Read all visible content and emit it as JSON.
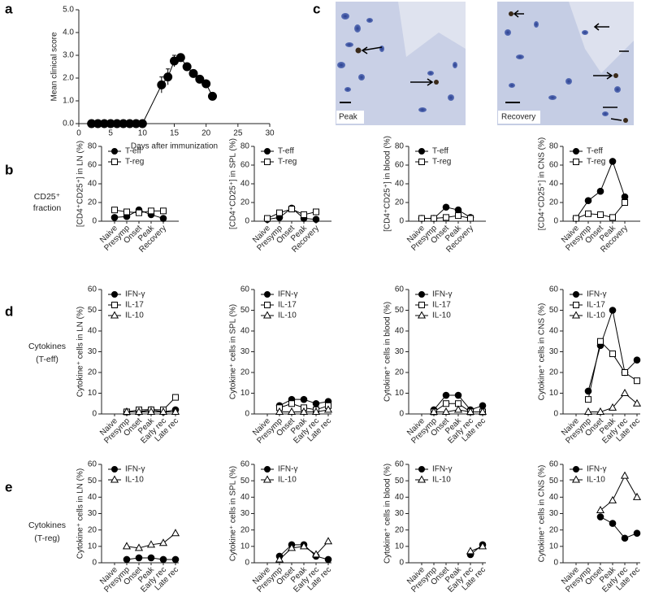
{
  "panel_labels": [
    "a",
    "b",
    "c",
    "d",
    "e"
  ],
  "row_labels": [
    [
      "CD25⁺",
      "fraction"
    ],
    [
      "Cytokines",
      "(T-eff)"
    ],
    [
      "Cytokines",
      "(T-reg)"
    ]
  ],
  "images": [
    {
      "label": "Peak"
    },
    {
      "label": "Recovery"
    }
  ],
  "chart_data": [
    {
      "type": "line",
      "xlabel": "Days after immunization",
      "ylabel": "Mean clinical score",
      "x": [
        2,
        3,
        4,
        5,
        6,
        7,
        8,
        9,
        10,
        13,
        14,
        15,
        16,
        17,
        18,
        19,
        20,
        21
      ],
      "values": [
        0,
        0,
        0,
        0,
        0,
        0,
        0,
        0,
        0,
        1.7,
        2.05,
        2.75,
        2.9,
        2.5,
        2.2,
        1.95,
        1.75,
        1.2
      ],
      "errors": [
        0,
        0,
        0,
        0,
        0,
        0,
        0,
        0,
        0,
        0.35,
        0.35,
        0.25,
        0.15,
        0.1,
        0.1,
        0.1,
        0.1,
        0.12
      ],
      "marker": "circle-filled",
      "color": "#000000",
      "xlim": [
        0,
        30
      ],
      "xticks": [
        0,
        5,
        10,
        15,
        20,
        25,
        30
      ],
      "ylim": [
        0,
        5
      ],
      "yticks": [
        {
          "value": 0,
          "label": "0.0"
        },
        {
          "value": 1,
          "label": "1.0"
        },
        {
          "value": 2,
          "label": "2.0"
        },
        {
          "value": 3,
          "label": "3.0"
        },
        {
          "value": 4,
          "label": "4.0"
        },
        {
          "value": 5,
          "label": "5.0"
        }
      ]
    },
    {
      "type": "line",
      "ylabel": "[CD4⁺CD25⁺] in LN (%)",
      "categories": [
        "Naive",
        "Presymp",
        "Onset",
        "Peak",
        "Recovery"
      ],
      "ylim": [
        0,
        80
      ],
      "yticks": [
        0,
        20,
        40,
        60,
        80
      ],
      "series": [
        {
          "name": "T-eff",
          "marker": "circle-filled",
          "color": "#000000",
          "values": [
            4,
            5,
            12,
            7,
            3
          ]
        },
        {
          "name": "T-reg",
          "marker": "square-open",
          "color": "#000000",
          "values": [
            12,
            10,
            9,
            11,
            11
          ]
        }
      ]
    },
    {
      "type": "line",
      "ylabel": "[CD4⁺CD25⁺] in SPL (%)",
      "categories": [
        "Naive",
        "Presymp",
        "Onset",
        "Peak",
        "Recovery"
      ],
      "ylim": [
        0,
        80
      ],
      "yticks": [
        0,
        20,
        40,
        60,
        80
      ],
      "series": [
        {
          "name": "T-eff",
          "marker": "circle-filled",
          "color": "#000000",
          "values": [
            2,
            4,
            14,
            3,
            2
          ]
        },
        {
          "name": "T-reg",
          "marker": "square-open",
          "color": "#000000",
          "values": [
            3,
            9,
            13,
            7,
            10
          ]
        }
      ]
    },
    {
      "type": "line",
      "ylabel": "[CD4⁺CD25⁺] in blood (%)",
      "categories": [
        "Naive",
        "Presymp",
        "Onset",
        "Peak",
        "Recovery"
      ],
      "ylim": [
        0,
        80
      ],
      "yticks": [
        0,
        20,
        40,
        60,
        80
      ],
      "series": [
        {
          "name": "T-eff",
          "marker": "circle-filled",
          "color": "#000000",
          "values": [
            3,
            3,
            15,
            12,
            4
          ]
        },
        {
          "name": "T-reg",
          "marker": "square-open",
          "color": "#000000",
          "values": [
            3,
            3,
            4,
            6,
            3
          ]
        }
      ]
    },
    {
      "type": "line",
      "ylabel": "[CD4⁺CD25⁺] in CNS (%)",
      "categories": [
        "Naive",
        "Presymp",
        "Onset",
        "Peak",
        "Recovery"
      ],
      "ylim": [
        0,
        80
      ],
      "yticks": [
        0,
        20,
        40,
        60,
        80
      ],
      "series": [
        {
          "name": "T-eff",
          "marker": "circle-filled",
          "color": "#000000",
          "values": [
            3,
            22,
            32,
            64,
            26
          ]
        },
        {
          "name": "T-reg",
          "marker": "square-open",
          "color": "#000000",
          "values": [
            3,
            8,
            7,
            4,
            20
          ]
        }
      ]
    },
    {
      "type": "line",
      "ylabel": "Cytokine⁺ cells in LN (%)",
      "categories": [
        "Naive",
        "Presymp",
        "Onset",
        "Peak",
        "Early rec",
        "Late rec"
      ],
      "ylim": [
        0,
        60
      ],
      "yticks": [
        0,
        10,
        20,
        30,
        40,
        50,
        60
      ],
      "series": [
        {
          "name": "IFN-γ",
          "marker": "circle-filled",
          "color": "#000000",
          "values": [
            null,
            1,
            1,
            2,
            1,
            2
          ]
        },
        {
          "name": "IL-17",
          "marker": "square-open",
          "color": "#000000",
          "values": [
            null,
            1,
            2,
            2,
            2,
            8
          ]
        },
        {
          "name": "IL-10",
          "marker": "triangle-open",
          "color": "#000000",
          "values": [
            null,
            1,
            1,
            1,
            1,
            1
          ]
        }
      ]
    },
    {
      "type": "line",
      "ylabel": "Cytokine⁺ cells in SPL (%)",
      "categories": [
        "Naive",
        "Presymp",
        "Onset",
        "Peak",
        "Early rec",
        "Late rec"
      ],
      "ylim": [
        0,
        60
      ],
      "yticks": [
        0,
        10,
        20,
        30,
        40,
        50,
        60
      ],
      "series": [
        {
          "name": "IFN-γ",
          "marker": "circle-filled",
          "color": "#000000",
          "values": [
            null,
            4,
            7,
            7,
            5,
            6
          ]
        },
        {
          "name": "IL-17",
          "marker": "square-open",
          "color": "#000000",
          "values": [
            null,
            3,
            5,
            3,
            2,
            4
          ]
        },
        {
          "name": "IL-10",
          "marker": "triangle-open",
          "color": "#000000",
          "values": [
            null,
            1,
            1,
            1,
            1,
            2
          ]
        }
      ]
    },
    {
      "type": "line",
      "ylabel": "Cytokine⁺ cells in blood (%)",
      "categories": [
        "Naive",
        "Presymp",
        "Onset",
        "Peak",
        "Early rec",
        "Late rec"
      ],
      "ylim": [
        0,
        60
      ],
      "yticks": [
        0,
        10,
        20,
        30,
        40,
        50,
        60
      ],
      "series": [
        {
          "name": "IFN-γ",
          "marker": "circle-filled",
          "color": "#000000",
          "values": [
            null,
            2,
            9,
            9,
            2,
            4
          ]
        },
        {
          "name": "IL-17",
          "marker": "square-open",
          "color": "#000000",
          "values": [
            null,
            1,
            5,
            5,
            1,
            1
          ]
        },
        {
          "name": "IL-10",
          "marker": "triangle-open",
          "color": "#000000",
          "values": [
            null,
            1,
            1,
            2,
            1,
            1
          ]
        }
      ]
    },
    {
      "type": "line",
      "ylabel": "Cytokine⁺ cells in CNS (%)",
      "categories": [
        "Naive",
        "Presymp",
        "Onset",
        "Peak",
        "Early rec",
        "Late rec"
      ],
      "ylim": [
        0,
        60
      ],
      "yticks": [
        0,
        10,
        20,
        30,
        40,
        50,
        60
      ],
      "series": [
        {
          "name": "IFN-γ",
          "marker": "circle-filled",
          "color": "#000000",
          "values": [
            null,
            11,
            33,
            50,
            20,
            26
          ]
        },
        {
          "name": "IL-17",
          "marker": "square-open",
          "color": "#000000",
          "values": [
            null,
            7,
            35,
            29,
            20,
            16
          ]
        },
        {
          "name": "IL-10",
          "marker": "triangle-open",
          "color": "#000000",
          "values": [
            null,
            1,
            1,
            3,
            10,
            5
          ]
        }
      ]
    },
    {
      "type": "line",
      "ylabel": "Cytokine⁺ cells in LN (%)",
      "categories": [
        "Naive",
        "Presymp",
        "Onset",
        "Peak",
        "Early rec",
        "Late rec"
      ],
      "ylim": [
        0,
        60
      ],
      "yticks": [
        0,
        10,
        20,
        30,
        40,
        50,
        60
      ],
      "series": [
        {
          "name": "IFN-γ",
          "marker": "circle-filled",
          "color": "#000000",
          "values": [
            null,
            2,
            3,
            3,
            2,
            2
          ]
        },
        {
          "name": "IL-10",
          "marker": "triangle-open",
          "color": "#000000",
          "values": [
            null,
            10,
            9,
            11,
            12,
            18
          ]
        }
      ]
    },
    {
      "type": "line",
      "ylabel": "Cytokine⁺ cells in SPL (%)",
      "categories": [
        "Naive",
        "Presymp",
        "Onset",
        "Peak",
        "Early rec",
        "Late rec"
      ],
      "ylim": [
        0,
        60
      ],
      "yticks": [
        0,
        10,
        20,
        30,
        40,
        50,
        60
      ],
      "series": [
        {
          "name": "IFN-γ",
          "marker": "circle-filled",
          "color": "#000000",
          "values": [
            null,
            4,
            11,
            11,
            4,
            2
          ]
        },
        {
          "name": "IL-10",
          "marker": "triangle-open",
          "color": "#000000",
          "values": [
            null,
            2,
            9,
            10,
            5,
            13
          ]
        }
      ]
    },
    {
      "type": "line",
      "ylabel": "Cytokine⁺ cells in blood (%)",
      "categories": [
        "Naive",
        "Presymp",
        "Onset",
        "Peak",
        "Early rec",
        "Late rec"
      ],
      "ylim": [
        0,
        60
      ],
      "yticks": [
        0,
        10,
        20,
        30,
        40,
        50,
        60
      ],
      "series": [
        {
          "name": "IFN-γ",
          "marker": "circle-filled",
          "color": "#000000",
          "values": [
            null,
            null,
            null,
            null,
            5,
            11
          ]
        },
        {
          "name": "IL-10",
          "marker": "triangle-open",
          "color": "#000000",
          "values": [
            null,
            null,
            null,
            null,
            7,
            10
          ]
        }
      ]
    },
    {
      "type": "line",
      "ylabel": "Cytokine⁺ cells in CNS (%)",
      "categories": [
        "Naive",
        "Presymp",
        "Onset",
        "Peak",
        "Early rec",
        "Late rec"
      ],
      "ylim": [
        0,
        60
      ],
      "yticks": [
        0,
        10,
        20,
        30,
        40,
        50,
        60
      ],
      "series": [
        {
          "name": "IFN-γ",
          "marker": "circle-filled",
          "color": "#000000",
          "values": [
            null,
            null,
            28,
            24,
            15,
            18
          ]
        },
        {
          "name": "IL-10",
          "marker": "triangle-open",
          "color": "#000000",
          "values": [
            null,
            null,
            32,
            38,
            53,
            40
          ]
        }
      ]
    }
  ]
}
